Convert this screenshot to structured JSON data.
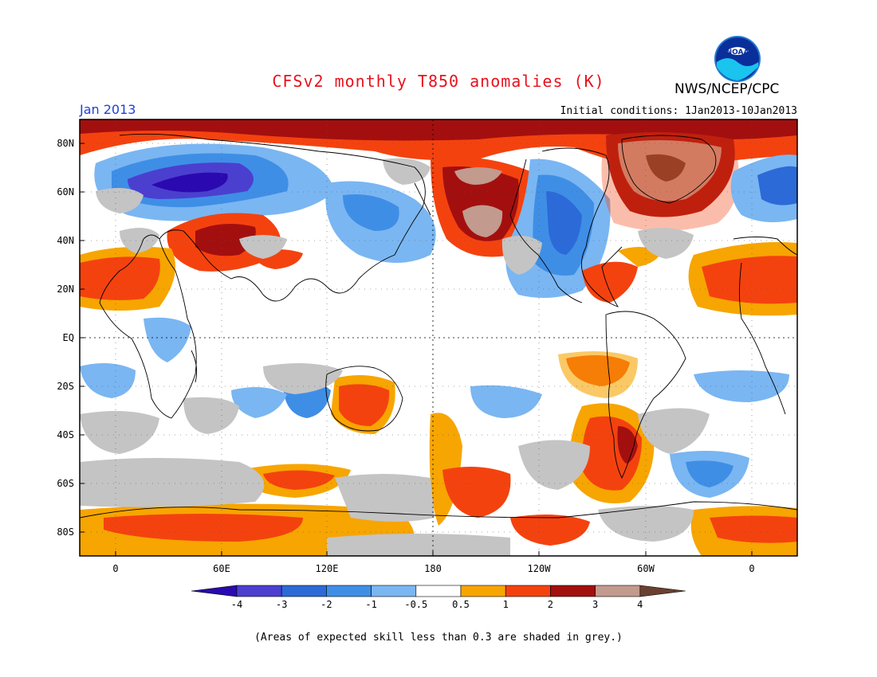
{
  "title": "CFSv2 monthly T850 anomalies (K)",
  "organization": "NWS/NCEP/CPC",
  "logo": {
    "icon": "noaa-logo-icon",
    "text": "NOAA"
  },
  "month_label": "Jan 2013",
  "initial_conditions": "Initial conditions: 1Jan2013-10Jan2013",
  "footnote": "(Areas of expected skill less than 0.3 are shaded in grey.)",
  "map": {
    "lat_ticks": [
      "80N",
      "60N",
      "40N",
      "20N",
      "EQ",
      "20S",
      "40S",
      "60S",
      "80S"
    ],
    "lon_ticks": [
      "0",
      "60E",
      "120E",
      "180",
      "120W",
      "60W",
      "0"
    ]
  },
  "legend": {
    "labels": [
      "-4",
      "-3",
      "-2",
      "-1",
      "-0.5",
      "0.5",
      "1",
      "2",
      "3",
      "4"
    ],
    "colors": [
      "#2a0ab0",
      "#4b3fd0",
      "#2c6ad8",
      "#3f8ee6",
      "#7ab6f2",
      "#ffffff",
      "#f7a500",
      "#f4420f",
      "#a30f0f",
      "#c29a8e",
      "#6a4030"
    ]
  },
  "colors": {
    "grey_mask": "#c4c4c4",
    "title_red": "#e8121d",
    "month_blue": "#1f3fd8"
  }
}
